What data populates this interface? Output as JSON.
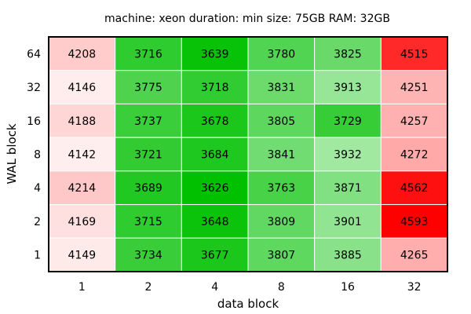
{
  "chart_data": {
    "type": "heatmap",
    "title": "machine: xeon  duration: min  size: 75GB  RAM: 32GB",
    "xlabel": "data block",
    "ylabel": "WAL block",
    "x_categories": [
      "1",
      "2",
      "4",
      "8",
      "16",
      "32"
    ],
    "y_categories": [
      "1",
      "2",
      "4",
      "8",
      "16",
      "32",
      "64"
    ],
    "rows": [
      {
        "y": "64",
        "values": [
          4208,
          3716,
          3639,
          3780,
          3825,
          4515
        ]
      },
      {
        "y": "32",
        "values": [
          4146,
          3775,
          3718,
          3831,
          3913,
          4251
        ]
      },
      {
        "y": "16",
        "values": [
          4188,
          3737,
          3678,
          3805,
          3729,
          4257
        ]
      },
      {
        "y": "8",
        "values": [
          4142,
          3721,
          3684,
          3841,
          3932,
          4272
        ]
      },
      {
        "y": "4",
        "values": [
          4214,
          3689,
          3626,
          3763,
          3871,
          4562
        ]
      },
      {
        "y": "2",
        "values": [
          4169,
          3715,
          3648,
          3809,
          3901,
          4593
        ]
      },
      {
        "y": "1",
        "values": [
          4149,
          3734,
          3677,
          3807,
          3885,
          4265
        ]
      }
    ],
    "colors": {
      "low": "#00c000",
      "mid": "#ffffff",
      "high": "#ff0000",
      "grid": "#ffffff",
      "border": "#000000"
    }
  }
}
